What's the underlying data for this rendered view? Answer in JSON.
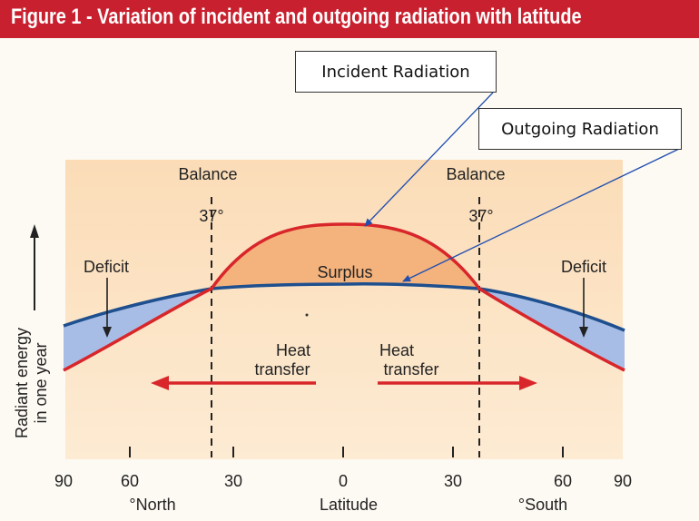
{
  "title": "Figure 1 - Variation of incident and outgoing radiation with latitude",
  "callouts": {
    "incident": "Incident Radiation",
    "outgoing": "Outgoing Radiation"
  },
  "labels": {
    "balance_left": "Balance",
    "balance_right": "Balance",
    "deg_left": "37°",
    "deg_right": "37°",
    "deficit_left": "Deficit",
    "deficit_right": "Deficit",
    "surplus": "Surplus",
    "heat_left_1": "Heat",
    "heat_left_2": "transfer",
    "heat_right_1": "Heat",
    "heat_right_2": "transfer",
    "ylabel_1": "Radiant energy",
    "ylabel_2": "in one year",
    "north": "°North",
    "south": "°South",
    "xlabel": "Latitude"
  },
  "ticks": [
    "90",
    "60",
    "30",
    "0",
    "30",
    "60",
    "90"
  ],
  "colors": {
    "title_bg": "#c8202e",
    "plot_bg": "#fce6c8",
    "incident": "#d8262a",
    "outgoing": "#1e4f8e",
    "surplus_fill": "#f4b27c",
    "deficit_fill": "#a7bde6",
    "arrow": "#d8262a"
  }
}
